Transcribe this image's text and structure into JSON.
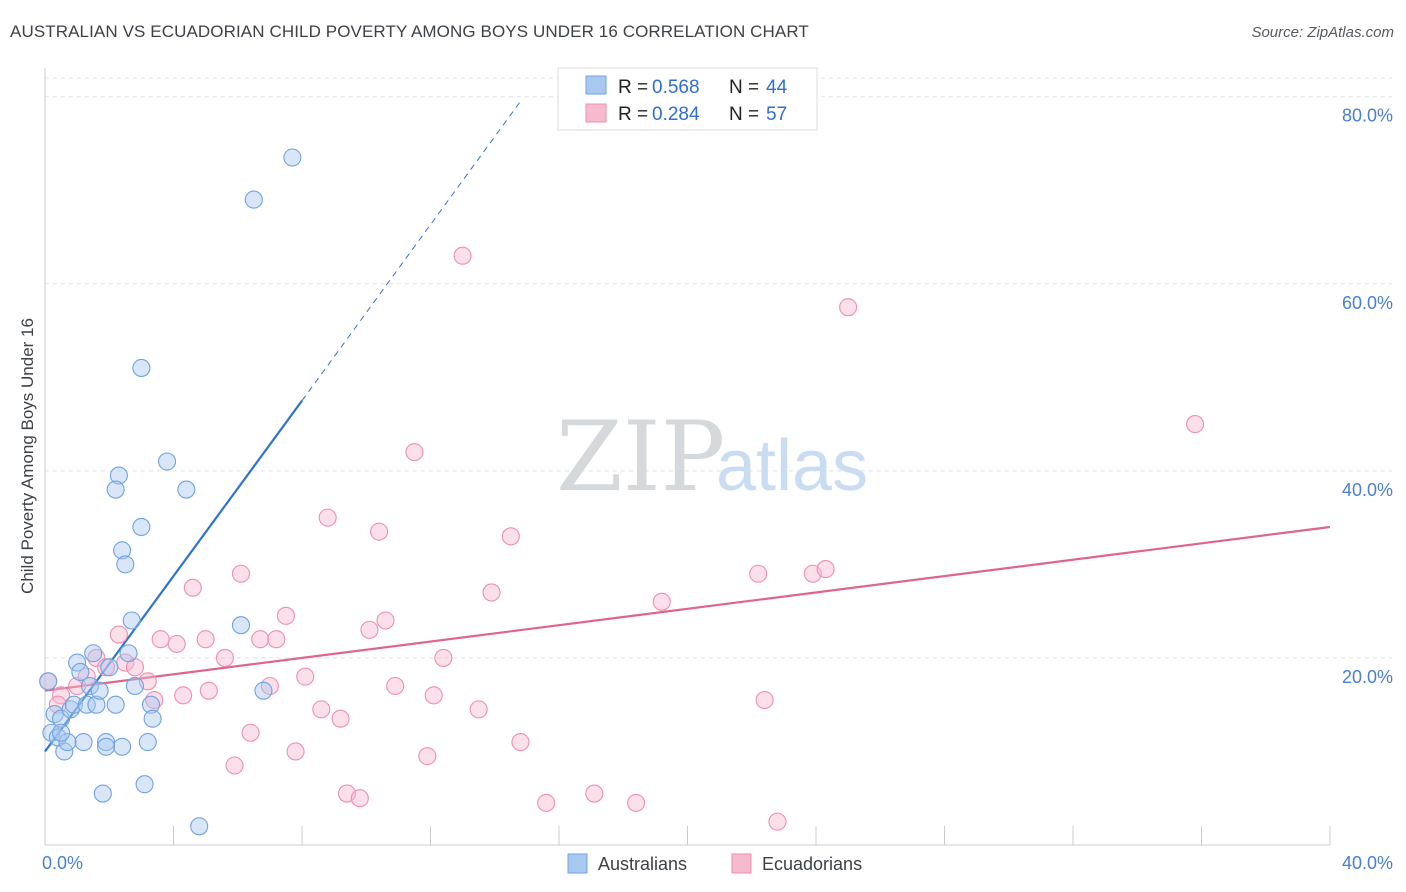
{
  "header": {
    "title": "AUSTRALIAN VS ECUADORIAN CHILD POVERTY AMONG BOYS UNDER 16 CORRELATION CHART",
    "source": "Source: ZipAtlas.com"
  },
  "watermark": {
    "zip": "ZIP",
    "atlas": "atlas"
  },
  "legend_stats": [
    {
      "r_label": "R =",
      "r_value": "0.568",
      "n_label": "N =",
      "n_value": "44",
      "color": "#a8c8f0"
    },
    {
      "r_label": "R =",
      "r_value": "0.284",
      "n_label": "N =",
      "n_value": "57",
      "color": "#f7b9ce"
    }
  ],
  "chart_data": {
    "type": "scatter",
    "title": "AUSTRALIAN VS ECUADORIAN CHILD POVERTY AMONG BOYS UNDER 16 CORRELATION CHART",
    "xlabel": "",
    "ylabel": "Child Poverty Among Boys Under 16",
    "xlim": [
      0,
      40
    ],
    "ylim": [
      0,
      82
    ],
    "x_tick_labels": [
      "0.0%",
      "40.0%"
    ],
    "y_ticks": [
      20,
      40,
      60,
      80
    ],
    "y_tick_labels": [
      "20.0%",
      "40.0%",
      "60.0%",
      "80.0%"
    ],
    "grid": true,
    "legend_position": "bottom-center",
    "colors": {
      "australians": "#6fa3e0",
      "ecuadorians": "#ee8fb0",
      "australians_line": "#2f74cc",
      "ecuadorians_line": "#e0648f",
      "axis_text": "#4a7fcf"
    },
    "series": [
      {
        "name": "Australians",
        "r": 0.568,
        "n": 44,
        "trend": {
          "x": [
            0,
            8
          ],
          "y": [
            10.0,
            47.5
          ],
          "dashed_to": [
            14.8,
            79.5
          ]
        },
        "points": [
          [
            0.1,
            17.5
          ],
          [
            0.2,
            12.0
          ],
          [
            0.3,
            14.0
          ],
          [
            0.4,
            11.5
          ],
          [
            0.5,
            13.5
          ],
          [
            0.6,
            10.0
          ],
          [
            0.7,
            11.0
          ],
          [
            0.8,
            14.5
          ],
          [
            0.9,
            15.0
          ],
          [
            1.0,
            19.5
          ],
          [
            1.1,
            18.5
          ],
          [
            1.2,
            11.0
          ],
          [
            1.3,
            15.0
          ],
          [
            1.4,
            17.0
          ],
          [
            1.5,
            20.5
          ],
          [
            1.6,
            15.0
          ],
          [
            1.7,
            16.5
          ],
          [
            1.8,
            5.5
          ],
          [
            1.9,
            11.0
          ],
          [
            2.0,
            19.0
          ],
          [
            2.2,
            15.0
          ],
          [
            2.3,
            39.5
          ],
          [
            2.4,
            31.5
          ],
          [
            2.5,
            30.0
          ],
          [
            2.6,
            20.5
          ],
          [
            2.7,
            24.0
          ],
          [
            2.8,
            17.0
          ],
          [
            3.0,
            34.0
          ],
          [
            3.1,
            6.5
          ],
          [
            3.2,
            11.0
          ],
          [
            3.3,
            15.0
          ],
          [
            3.35,
            13.5
          ],
          [
            3.8,
            41.0
          ],
          [
            3.0,
            51.0
          ],
          [
            2.2,
            38.0
          ],
          [
            4.4,
            38.0
          ],
          [
            2.4,
            10.5
          ],
          [
            1.9,
            10.5
          ],
          [
            4.8,
            2.0
          ],
          [
            6.1,
            23.5
          ],
          [
            6.8,
            16.5
          ],
          [
            6.5,
            69.0
          ],
          [
            7.7,
            73.5
          ],
          [
            0.5,
            12.0
          ]
        ]
      },
      {
        "name": "Ecuadorians",
        "r": 0.284,
        "n": 57,
        "trend": {
          "x": [
            0,
            40
          ],
          "y": [
            16.5,
            34.0
          ]
        },
        "points": [
          [
            0.1,
            17.5
          ],
          [
            0.5,
            16.0
          ],
          [
            1.0,
            17.0
          ],
          [
            1.3,
            18.0
          ],
          [
            1.6,
            20.0
          ],
          [
            1.9,
            19.0
          ],
          [
            2.3,
            22.5
          ],
          [
            2.5,
            19.5
          ],
          [
            2.8,
            19.0
          ],
          [
            3.2,
            17.5
          ],
          [
            3.4,
            15.5
          ],
          [
            3.6,
            22.0
          ],
          [
            4.1,
            21.5
          ],
          [
            4.3,
            16.0
          ],
          [
            4.6,
            27.5
          ],
          [
            5.0,
            22.0
          ],
          [
            5.1,
            16.5
          ],
          [
            5.6,
            20.0
          ],
          [
            5.9,
            8.5
          ],
          [
            6.1,
            29.0
          ],
          [
            6.4,
            12.0
          ],
          [
            6.7,
            22.0
          ],
          [
            7.0,
            17.0
          ],
          [
            7.2,
            22.0
          ],
          [
            7.5,
            24.5
          ],
          [
            7.8,
            10.0
          ],
          [
            8.1,
            18.0
          ],
          [
            8.6,
            14.5
          ],
          [
            8.8,
            35.0
          ],
          [
            9.2,
            13.5
          ],
          [
            9.4,
            5.5
          ],
          [
            9.8,
            5.0
          ],
          [
            10.1,
            23.0
          ],
          [
            10.4,
            33.5
          ],
          [
            10.6,
            24.0
          ],
          [
            10.9,
            17.0
          ],
          [
            11.5,
            42.0
          ],
          [
            11.9,
            9.5
          ],
          [
            12.1,
            16.0
          ],
          [
            12.4,
            20.0
          ],
          [
            13.0,
            63.0
          ],
          [
            13.5,
            14.5
          ],
          [
            13.9,
            27.0
          ],
          [
            14.5,
            33.0
          ],
          [
            14.8,
            11.0
          ],
          [
            15.6,
            4.5
          ],
          [
            17.1,
            5.5
          ],
          [
            18.4,
            4.5
          ],
          [
            19.2,
            26.0
          ],
          [
            22.2,
            29.0
          ],
          [
            22.4,
            15.5
          ],
          [
            22.8,
            2.5
          ],
          [
            23.9,
            29.0
          ],
          [
            24.3,
            29.5
          ],
          [
            25.0,
            57.5
          ],
          [
            35.8,
            45.0
          ],
          [
            0.4,
            15.0
          ]
        ]
      }
    ]
  },
  "bottom_legend": [
    {
      "label": "Australians",
      "color": "#a8c8f0",
      "border": "#6fa3e0"
    },
    {
      "label": "Ecuadorians",
      "color": "#f7b9ce",
      "border": "#ee8fb0"
    }
  ]
}
